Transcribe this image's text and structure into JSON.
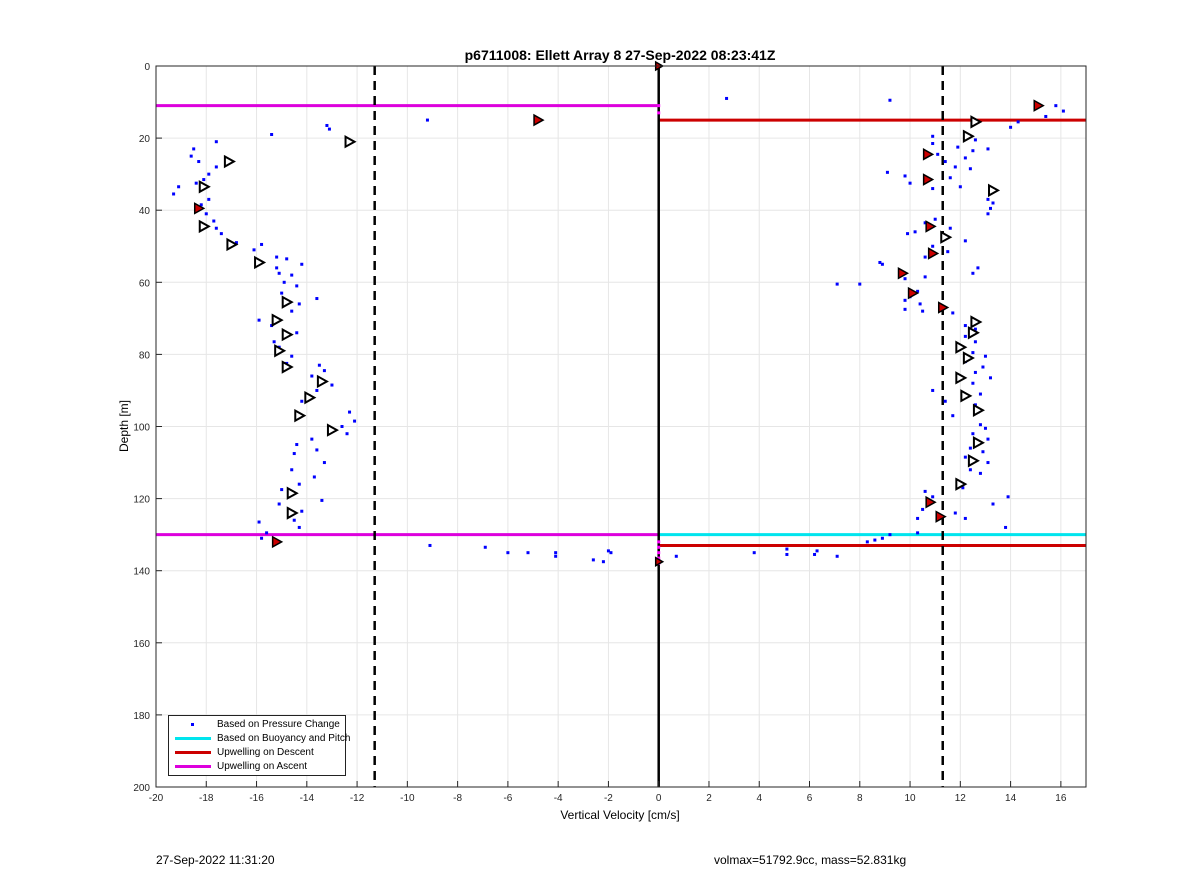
{
  "footer": {
    "timestamp": "27-Sep-2022 11:31:20",
    "info": "volmax=51792.9cc, mass=52.831kg"
  },
  "chart_data": {
    "type": "scatter",
    "title": "p6711008: Ellett Array 8 27-Sep-2022 08:23:41Z",
    "xlabel": "Vertical Velocity [cm/s]",
    "ylabel": "Depth [m]",
    "xlim": [
      -20,
      17
    ],
    "ylim": [
      0,
      200
    ],
    "y_reversed": true,
    "grid": true,
    "xticks": [
      -20,
      -18,
      -16,
      -14,
      -12,
      -10,
      -8,
      -6,
      -4,
      -2,
      0,
      2,
      4,
      6,
      8,
      10,
      12,
      14,
      16
    ],
    "yticks": [
      0,
      20,
      40,
      60,
      80,
      100,
      120,
      140,
      160,
      180,
      200
    ],
    "legend_position": "bottom-left",
    "legend": [
      {
        "label": "Based on Pressure Change",
        "color": "#0000ff",
        "style": "dot"
      },
      {
        "label": "Based on Buoyancy and Pitch",
        "color": "#00e5ee",
        "style": "line"
      },
      {
        "label": "Upwelling on Descent",
        "color": "#cc0000",
        "style": "line"
      },
      {
        "label": "Upwelling on Ascent",
        "color": "#dd00dd",
        "style": "line"
      }
    ],
    "reference_lines": {
      "zero_line_x": 0,
      "dashed_x": [
        -11.3,
        11.3
      ]
    },
    "horizontal_lines": [
      {
        "series": "Upwelling on Ascent",
        "y": 11,
        "x": [
          -20,
          0
        ],
        "color": "#dd00dd"
      },
      {
        "series": "Upwelling on Descent",
        "y": 15,
        "x": [
          0,
          17
        ],
        "color": "#cc0000"
      },
      {
        "series": "Upwelling on Ascent",
        "y": 130,
        "x": [
          -20,
          0
        ],
        "color": "#dd00dd"
      },
      {
        "series": "Based on Buoyancy and Pitch",
        "y": 130,
        "x": [
          0,
          17
        ],
        "color": "#00e5ee"
      },
      {
        "series": "Upwelling on Descent",
        "y": 133,
        "x": [
          0,
          17
        ],
        "color": "#cc0000"
      }
    ],
    "pressure_points": [
      [
        2.7,
        9
      ],
      [
        9.2,
        9.5
      ],
      [
        15.8,
        11
      ],
      [
        16.1,
        12.5
      ],
      [
        15.4,
        14
      ],
      [
        14.3,
        15.5
      ],
      [
        14,
        17
      ],
      [
        -9.2,
        15
      ],
      [
        -13.2,
        16.5
      ],
      [
        -13.1,
        17.5
      ],
      [
        -15.4,
        19
      ],
      [
        -17.6,
        21
      ],
      [
        -18.5,
        23
      ],
      [
        -18.6,
        25
      ],
      [
        -18.3,
        26.5
      ],
      [
        -17.6,
        28
      ],
      [
        -17.9,
        30
      ],
      [
        -18.1,
        31.5
      ],
      [
        -18.4,
        32.5
      ],
      [
        -19.1,
        33.5
      ],
      [
        -19.3,
        35.5
      ],
      [
        -17.9,
        37
      ],
      [
        -18.2,
        38.5
      ],
      [
        -18,
        41
      ],
      [
        -17.7,
        43
      ],
      [
        -17.6,
        45
      ],
      [
        -17.4,
        46.5
      ],
      [
        -16.8,
        49
      ],
      [
        -15.8,
        49.5
      ],
      [
        -16.1,
        51
      ],
      [
        -15.2,
        53
      ],
      [
        -14.8,
        53.5
      ],
      [
        -14.2,
        55
      ],
      [
        -15.2,
        56
      ],
      [
        -15.1,
        57.5
      ],
      [
        -14.6,
        58
      ],
      [
        -14.9,
        60
      ],
      [
        -14.4,
        61
      ],
      [
        -15,
        63
      ],
      [
        -13.6,
        64.5
      ],
      [
        -14.3,
        66
      ],
      [
        -14.6,
        68
      ],
      [
        -15.9,
        70.5
      ],
      [
        -15.4,
        72
      ],
      [
        -14.4,
        74
      ],
      [
        -15.3,
        76.5
      ],
      [
        -15.1,
        78
      ],
      [
        -14.6,
        80.5
      ],
      [
        -14.8,
        82.5
      ],
      [
        -13.5,
        83
      ],
      [
        -13.3,
        84.5
      ],
      [
        -13.8,
        86
      ],
      [
        -13,
        88.5
      ],
      [
        -13.6,
        90
      ],
      [
        -13.9,
        91.5
      ],
      [
        -14.2,
        93
      ],
      [
        -12.3,
        96
      ],
      [
        -12.1,
        98.5
      ],
      [
        -12.6,
        100
      ],
      [
        -12.4,
        102
      ],
      [
        -13.8,
        103.5
      ],
      [
        -14.4,
        105
      ],
      [
        -13.6,
        106.5
      ],
      [
        -14.5,
        107.5
      ],
      [
        -13.3,
        110
      ],
      [
        -14.6,
        112
      ],
      [
        -13.7,
        114
      ],
      [
        -14.3,
        116
      ],
      [
        -15,
        117.5
      ],
      [
        -14.6,
        119
      ],
      [
        -13.4,
        120.5
      ],
      [
        -15.1,
        121.5
      ],
      [
        -14.2,
        123.5
      ],
      [
        -14.5,
        126
      ],
      [
        -15.9,
        126.5
      ],
      [
        -14.3,
        128
      ],
      [
        -15.6,
        129.5
      ],
      [
        -15.8,
        131
      ],
      [
        10.9,
        19.5
      ],
      [
        12.6,
        20.5
      ],
      [
        10.9,
        21.5
      ],
      [
        11.9,
        22.5
      ],
      [
        12.5,
        23.5
      ],
      [
        13.1,
        23
      ],
      [
        11.1,
        24.5
      ],
      [
        12.2,
        25.5
      ],
      [
        11.4,
        26.5
      ],
      [
        11.8,
        28
      ],
      [
        12.4,
        28.5
      ],
      [
        9.1,
        29.5
      ],
      [
        9.8,
        30.5
      ],
      [
        11.6,
        31
      ],
      [
        10,
        32.5
      ],
      [
        12,
        33.5
      ],
      [
        10.9,
        34
      ],
      [
        13.1,
        37
      ],
      [
        13.3,
        38
      ],
      [
        13.2,
        39.5
      ],
      [
        13.1,
        41
      ],
      [
        11,
        42.5
      ],
      [
        10.6,
        43.5
      ],
      [
        11.6,
        45
      ],
      [
        10.2,
        46
      ],
      [
        9.9,
        46.5
      ],
      [
        12.2,
        48.5
      ],
      [
        10.9,
        50
      ],
      [
        11.5,
        51.5
      ],
      [
        10.6,
        53
      ],
      [
        8.8,
        54.5
      ],
      [
        8.9,
        55
      ],
      [
        12.7,
        56
      ],
      [
        12.5,
        57.5
      ],
      [
        10.6,
        58.5
      ],
      [
        9.8,
        59
      ],
      [
        8,
        60.5
      ],
      [
        7.1,
        60.5
      ],
      [
        10.3,
        62.5
      ],
      [
        10,
        64
      ],
      [
        9.8,
        65
      ],
      [
        10.4,
        66
      ],
      [
        9.8,
        67.5
      ],
      [
        10.5,
        68
      ],
      [
        11.7,
        68.5
      ],
      [
        12.5,
        70.5
      ],
      [
        12.2,
        72
      ],
      [
        12.6,
        73
      ],
      [
        12.2,
        75
      ],
      [
        12.6,
        76.5
      ],
      [
        12.1,
        78
      ],
      [
        12.5,
        79.5
      ],
      [
        13,
        80.5
      ],
      [
        12.2,
        82
      ],
      [
        12.9,
        83.5
      ],
      [
        12.6,
        85
      ],
      [
        13.2,
        86.5
      ],
      [
        12.5,
        88
      ],
      [
        10.9,
        90
      ],
      [
        12.8,
        91
      ],
      [
        11.4,
        93
      ],
      [
        12.6,
        94
      ],
      [
        12.7,
        96
      ],
      [
        11.7,
        97
      ],
      [
        12.8,
        99.5
      ],
      [
        13,
        100.5
      ],
      [
        12.5,
        102
      ],
      [
        13.1,
        103.5
      ],
      [
        12.4,
        106
      ],
      [
        12.9,
        107
      ],
      [
        12.2,
        108.5
      ],
      [
        13.1,
        110
      ],
      [
        12.4,
        112
      ],
      [
        12.8,
        113
      ],
      [
        11.9,
        116
      ],
      [
        12.1,
        117
      ],
      [
        10.6,
        118
      ],
      [
        10.9,
        119.5
      ],
      [
        13.9,
        119.5
      ],
      [
        13.3,
        121.5
      ],
      [
        10.5,
        123
      ],
      [
        11.8,
        124
      ],
      [
        10.3,
        125.5
      ],
      [
        12.2,
        125.5
      ],
      [
        13.8,
        128
      ],
      [
        10.3,
        129.5
      ],
      [
        9.2,
        130
      ],
      [
        8.9,
        131
      ],
      [
        8.6,
        131.5
      ],
      [
        8.3,
        132
      ],
      [
        6.3,
        134.5
      ],
      [
        5.1,
        134
      ],
      [
        3.8,
        135
      ],
      [
        5.1,
        135.5
      ],
      [
        6.2,
        135.5
      ],
      [
        7.1,
        136
      ],
      [
        0.7,
        136
      ],
      [
        -9.1,
        133
      ],
      [
        -6.9,
        133.5
      ],
      [
        -6,
        135
      ],
      [
        -5.2,
        135
      ],
      [
        -4.1,
        135
      ],
      [
        -4.1,
        136
      ],
      [
        -2,
        134.5
      ],
      [
        -1.9,
        135
      ],
      [
        -2.6,
        137
      ],
      [
        -2.2,
        137.5
      ],
      [
        0,
        132
      ],
      [
        0,
        133.5
      ],
      [
        0,
        135
      ],
      [
        0,
        136.5
      ],
      [
        0,
        138
      ],
      [
        0,
        11
      ],
      [
        0,
        13
      ]
    ],
    "ascent_markers": [
      [
        -12.3,
        21
      ],
      [
        -17.1,
        26.5
      ],
      [
        -18.1,
        33.5
      ],
      [
        -18.1,
        44.5
      ],
      [
        -17,
        49.5
      ],
      [
        -15.9,
        54.5
      ],
      [
        -14.8,
        65.5
      ],
      [
        -15.2,
        70.5
      ],
      [
        -14.8,
        74.5
      ],
      [
        -15.1,
        79
      ],
      [
        -14.8,
        83.5
      ],
      [
        -13.4,
        87.5
      ],
      [
        -13.9,
        92
      ],
      [
        -14.3,
        97
      ],
      [
        -13,
        101
      ],
      [
        -14.6,
        118.5
      ],
      [
        -14.6,
        124
      ],
      [
        12.6,
        15.5
      ],
      [
        12.3,
        19.5
      ],
      [
        13.3,
        34.5
      ],
      [
        11.4,
        47.5
      ],
      [
        12.6,
        71
      ],
      [
        12.5,
        74
      ],
      [
        12,
        78
      ],
      [
        12.3,
        81
      ],
      [
        12,
        86.5
      ],
      [
        12.2,
        91.5
      ],
      [
        12.7,
        95.5
      ],
      [
        12.7,
        104.5
      ],
      [
        12.5,
        109.5
      ],
      [
        12,
        116
      ]
    ],
    "descent_markers": [
      [
        15.1,
        11
      ],
      [
        -4.8,
        15
      ],
      [
        -18.3,
        39.5
      ],
      [
        10.7,
        24.5
      ],
      [
        10.7,
        31.5
      ],
      [
        10.8,
        44.5
      ],
      [
        10.9,
        52
      ],
      [
        9.7,
        57.5
      ],
      [
        10.1,
        63
      ],
      [
        11.3,
        67
      ],
      [
        10.8,
        121
      ],
      [
        11.2,
        125
      ],
      [
        -15.2,
        132
      ]
    ],
    "surface_points": [
      [
        0,
        0
      ],
      [
        0,
        137.5
      ]
    ]
  }
}
